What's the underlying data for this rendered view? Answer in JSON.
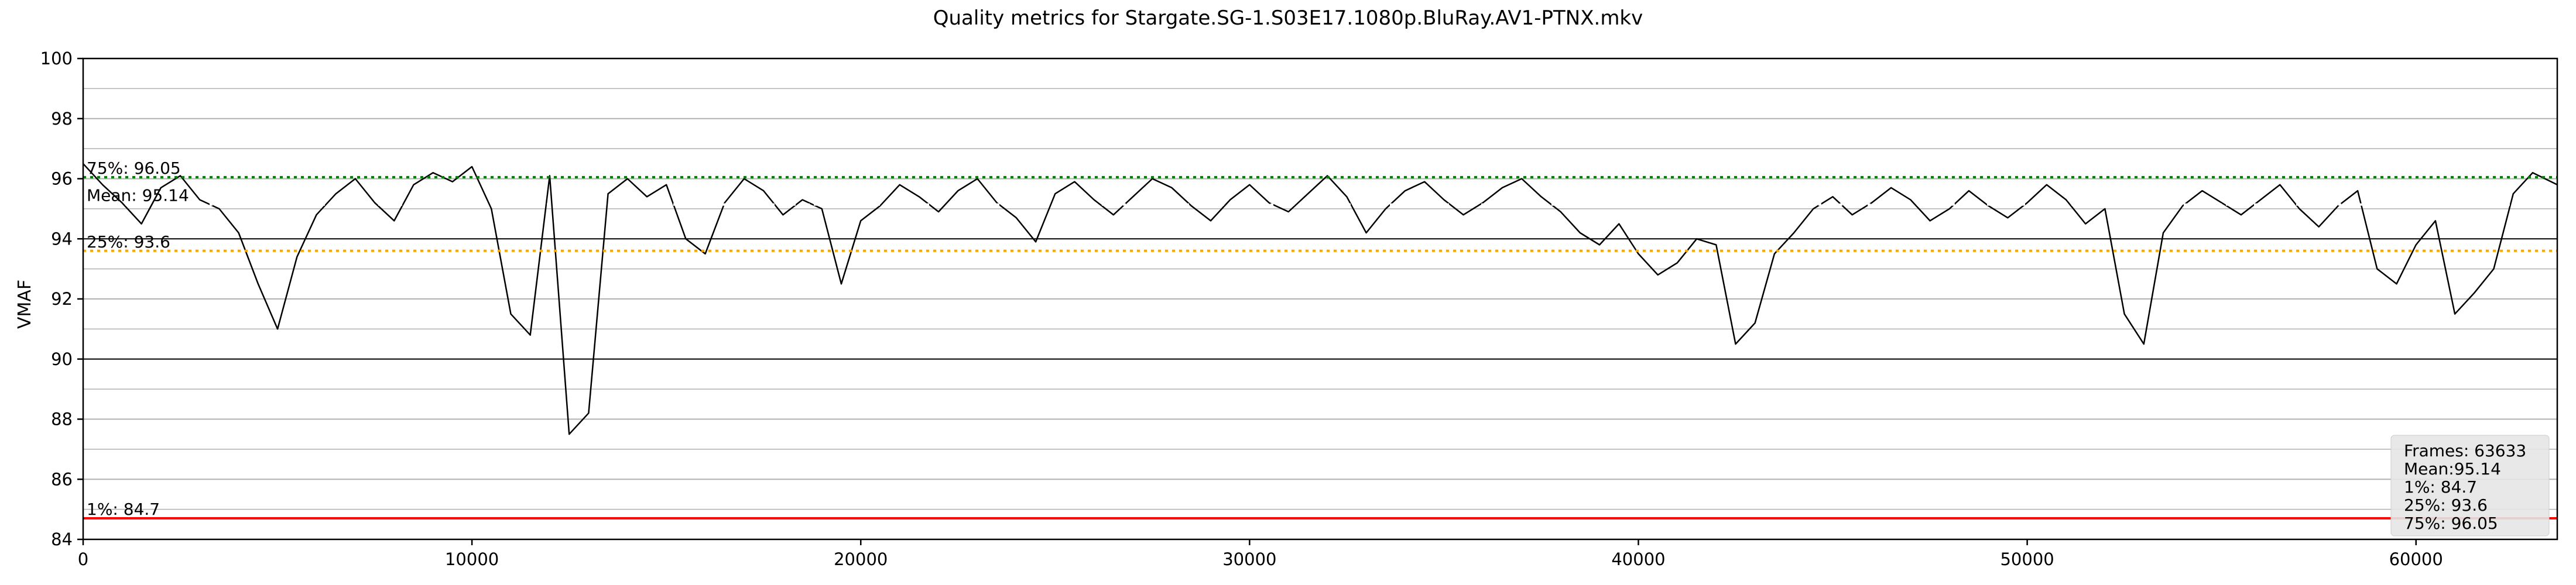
{
  "chart_data": {
    "type": "line",
    "title": "Quality metrics for Stargate.SG-1.S03E17.1080p.BluRay.AV1-PTNX.mkv",
    "xlabel": "",
    "ylabel": "VMAF",
    "xlim": [
      0,
      63633
    ],
    "ylim": [
      84,
      100
    ],
    "x_ticks": [
      0,
      10000,
      20000,
      30000,
      40000,
      50000,
      60000
    ],
    "x_tick_labels": [
      "0",
      "10000",
      "20000",
      "30000",
      "40000",
      "50000",
      "60000"
    ],
    "y_ticks": [
      84,
      86,
      88,
      90,
      92,
      94,
      96,
      98,
      100
    ],
    "y_tick_labels": [
      "84",
      "86",
      "88",
      "90",
      "92",
      "94",
      "96",
      "98",
      "100"
    ],
    "grid": true,
    "series": [
      {
        "color": "#000000",
        "x": [
          0,
          500,
          1000,
          1500,
          2000,
          2500,
          3000,
          3500,
          4000,
          4500,
          5000,
          5500,
          6000,
          6500,
          7000,
          7500,
          8000,
          8500,
          9000,
          9500,
          10000,
          10500,
          11000,
          11500,
          12000,
          12500,
          13000,
          13500,
          14000,
          14500,
          15000,
          15500,
          16000,
          16500,
          17000,
          17500,
          18000,
          18500,
          19000,
          19500,
          20000,
          20500,
          21000,
          21500,
          22000,
          22500,
          23000,
          23500,
          24000,
          24500,
          25000,
          25500,
          26000,
          26500,
          27000,
          27500,
          28000,
          28500,
          29000,
          29500,
          30000,
          30500,
          31000,
          31500,
          32000,
          32500,
          33000,
          33500,
          34000,
          34500,
          35000,
          35500,
          36000,
          36500,
          37000,
          37500,
          38000,
          38500,
          39000,
          39500,
          40000,
          40500,
          41000,
          41500,
          42000,
          42500,
          43000,
          43500,
          44000,
          44500,
          45000,
          45500,
          46000,
          46500,
          47000,
          47500,
          48000,
          48500,
          49000,
          49500,
          50000,
          50500,
          51000,
          51500,
          52000,
          52500,
          53000,
          53500,
          54000,
          54500,
          55000,
          55500,
          56000,
          56500,
          57000,
          57500,
          58000,
          58500,
          59000,
          59500,
          60000,
          60500,
          61000,
          61500,
          62000,
          62500,
          63000,
          63633
        ],
        "y": [
          96.5,
          95.8,
          95.2,
          94.5,
          95.7,
          96.1,
          95.3,
          95.0,
          94.2,
          92.5,
          91.0,
          93.4,
          94.8,
          95.5,
          96.0,
          95.2,
          94.6,
          95.8,
          96.2,
          95.9,
          96.4,
          95.0,
          91.5,
          90.8,
          96.1,
          87.5,
          88.2,
          95.5,
          96.0,
          95.4,
          95.8,
          94.0,
          93.5,
          95.2,
          96.0,
          95.6,
          94.8,
          95.3,
          95.0,
          92.5,
          94.6,
          95.1,
          95.8,
          95.4,
          94.9,
          95.6,
          96.0,
          95.2,
          94.7,
          93.9,
          95.5,
          95.9,
          95.3,
          94.8,
          95.4,
          96.0,
          95.7,
          95.1,
          94.6,
          95.3,
          95.8,
          95.2,
          94.9,
          95.5,
          96.1,
          95.4,
          94.2,
          95.0,
          95.6,
          95.9,
          95.3,
          94.8,
          95.2,
          95.7,
          96.0,
          95.4,
          94.9,
          94.2,
          93.8,
          94.5,
          93.5,
          92.8,
          93.2,
          94.0,
          93.8,
          90.5,
          91.2,
          93.5,
          94.2,
          95.0,
          95.4,
          94.8,
          95.2,
          95.7,
          95.3,
          94.6,
          95.0,
          95.6,
          95.1,
          94.7,
          95.2,
          95.8,
          95.3,
          94.5,
          95.0,
          91.5,
          90.5,
          94.2,
          95.1,
          95.6,
          95.2,
          94.8,
          95.3,
          95.8,
          95.0,
          94.4,
          95.1,
          95.6,
          93.0,
          92.5,
          93.8,
          94.6,
          91.5,
          92.2,
          93.0,
          95.5,
          96.2,
          95.8
        ]
      }
    ],
    "reference_lines": [
      {
        "value": 96.05,
        "label": "75%: 96.05",
        "color": "#008000",
        "style": "dotted"
      },
      {
        "value": 95.14,
        "label": "Mean: 95.14",
        "color": "#ffffff",
        "style": "dotted"
      },
      {
        "value": 93.6,
        "label": "25%: 93.6",
        "color": "#ffa500",
        "style": "dotted"
      },
      {
        "value": 84.7,
        "label": "1%: 84.7",
        "color": "#ff0000",
        "style": "solid"
      }
    ],
    "stats_box": {
      "lines": [
        "Frames: 63633",
        "Mean:95.14",
        "1%: 84.7",
        "25%: 93.6",
        "75%: 96.05"
      ],
      "placement": "bottom-right"
    },
    "colors": {
      "signal": "#000000",
      "grid": "#b0b0b0",
      "grid_strong": "#000000",
      "axes": "#000000",
      "background": "#ffffff",
      "stats_box": "#e6e6e6"
    }
  }
}
